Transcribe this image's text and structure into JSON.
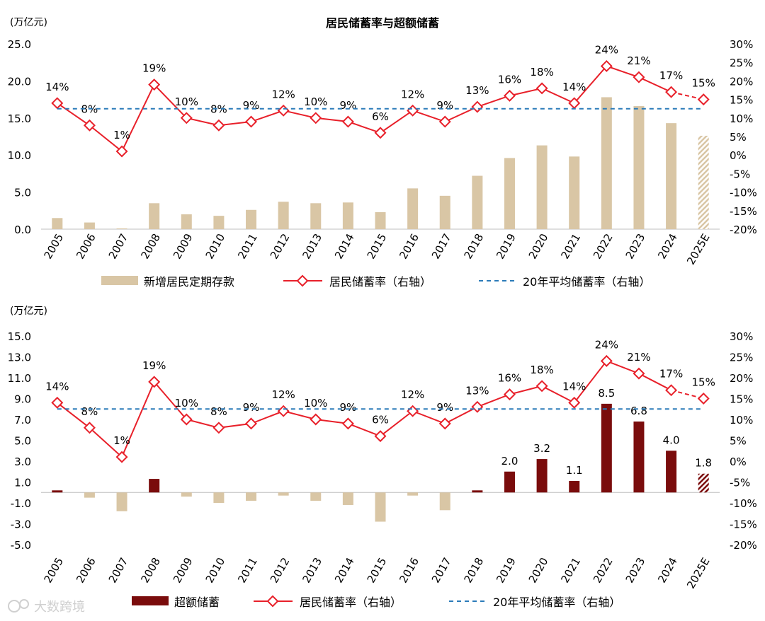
{
  "title": "居民储蓄率与超额储蓄",
  "watermark": "大数跨境",
  "chart_data": [
    {
      "type": "bar",
      "title": "居民储蓄率与超额储蓄",
      "unit_left": "(万亿元)",
      "categories": [
        "2005",
        "2006",
        "2007",
        "2008",
        "2009",
        "2010",
        "2011",
        "2012",
        "2013",
        "2014",
        "2015",
        "2016",
        "2017",
        "2018",
        "2019",
        "2020",
        "2021",
        "2022",
        "2023",
        "2024",
        "2025E"
      ],
      "y_left": {
        "min": 0,
        "max": 25,
        "ticks": [
          "0.0",
          "5.0",
          "10.0",
          "15.0",
          "20.0",
          "25.0"
        ]
      },
      "y_right": {
        "min": -20,
        "max": 30,
        "ticks": [
          "-20%",
          "-15%",
          "-10%",
          "-5%",
          "0%",
          "5%",
          "10%",
          "15%",
          "20%",
          "25%",
          "30%"
        ]
      },
      "series": [
        {
          "name": "新增居民定期存款",
          "kind": "bar",
          "axis": "left",
          "color": "#d9c6a5",
          "values": [
            1.5,
            0.9,
            0.1,
            3.5,
            2.0,
            1.8,
            2.6,
            3.7,
            3.5,
            3.6,
            2.3,
            5.5,
            4.5,
            7.2,
            9.6,
            11.3,
            9.8,
            17.8,
            16.6,
            14.3,
            12.6
          ],
          "estimate_from": "2025E"
        },
        {
          "name": "居民储蓄率（右轴）",
          "kind": "line",
          "axis": "right",
          "color": "#e8202a",
          "values": [
            14,
            8,
            1,
            19,
            10,
            8,
            9,
            12,
            10,
            9,
            6,
            12,
            9,
            13,
            16,
            18,
            14,
            24,
            21,
            17,
            15
          ],
          "labels": [
            "14%",
            "8%",
            "1%",
            "19%",
            "10%",
            "8%",
            "9%",
            "12%",
            "10%",
            "9%",
            "6%",
            "12%",
            "9%",
            "13%",
            "16%",
            "18%",
            "14%",
            "24%",
            "21%",
            "17%",
            "15%"
          ],
          "dashed_from": "2025E"
        },
        {
          "name": "20年平均储蓄率（右轴）",
          "kind": "hline",
          "axis": "right",
          "color": "#2b7bb9",
          "value": 12.5
        }
      ]
    },
    {
      "type": "bar",
      "unit_left": "(万亿元)",
      "categories": [
        "2005",
        "2006",
        "2007",
        "2008",
        "2009",
        "2010",
        "2011",
        "2012",
        "2013",
        "2014",
        "2015",
        "2016",
        "2017",
        "2018",
        "2019",
        "2020",
        "2021",
        "2022",
        "2023",
        "2024",
        "2025E"
      ],
      "y_left": {
        "min": -5,
        "max": 15,
        "ticks": [
          "-5.0",
          "-3.0",
          "-1.0",
          "1.0",
          "3.0",
          "5.0",
          "7.0",
          "9.0",
          "11.0",
          "13.0",
          "15.0"
        ]
      },
      "y_right": {
        "min": -20,
        "max": 30,
        "ticks": [
          "-20%",
          "-15%",
          "-10%",
          "-5%",
          "0%",
          "5%",
          "10%",
          "15%",
          "20%",
          "25%",
          "30%"
        ]
      },
      "series": [
        {
          "name": "超额储蓄",
          "kind": "bar",
          "axis": "left",
          "color_pos": "#7a0c0c",
          "color_neg": "#d9c6a5",
          "values": [
            0.2,
            -0.5,
            -1.8,
            1.3,
            -0.4,
            -1.0,
            -0.8,
            -0.3,
            -0.8,
            -1.2,
            -2.8,
            -0.3,
            -1.7,
            0.2,
            2.0,
            3.2,
            1.1,
            8.5,
            6.8,
            4.0,
            1.8
          ],
          "labels": [
            "",
            "",
            "",
            "",
            "",
            "",
            "",
            "",
            "",
            "",
            "",
            "",
            "",
            "",
            "2.0",
            "3.2",
            "1.1",
            "8.5",
            "6.8",
            "4.0",
            "1.8"
          ],
          "estimate_from": "2025E"
        },
        {
          "name": "居民储蓄率（右轴）",
          "kind": "line",
          "axis": "right",
          "color": "#e8202a",
          "values": [
            14,
            8,
            1,
            19,
            10,
            8,
            9,
            12,
            10,
            9,
            6,
            12,
            9,
            13,
            16,
            18,
            14,
            24,
            21,
            17,
            15
          ],
          "labels": [
            "14%",
            "8%",
            "1%",
            "19%",
            "10%",
            "8%",
            "9%",
            "12%",
            "10%",
            "9%",
            "6%",
            "12%",
            "9%",
            "13%",
            "16%",
            "18%",
            "14%",
            "24%",
            "21%",
            "17%",
            "15%"
          ],
          "dashed_from": "2025E"
        },
        {
          "name": "20年平均储蓄率（右轴）",
          "kind": "hline",
          "axis": "right",
          "color": "#2b7bb9",
          "value": 12.5
        }
      ]
    }
  ]
}
